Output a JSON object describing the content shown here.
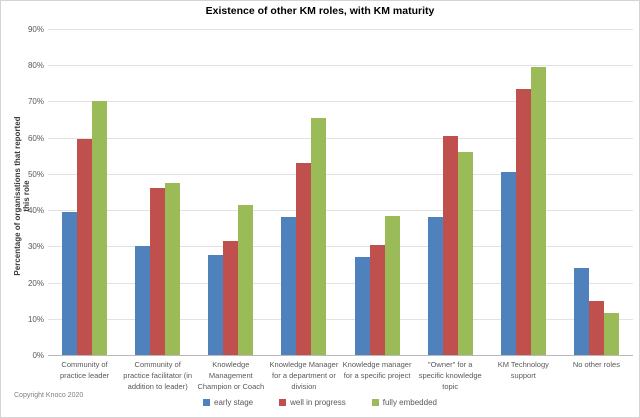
{
  "chart_data": {
    "type": "bar",
    "title": "Existence of other KM roles, with KM maturity",
    "ylabel": "Percentage of organisations that reported this role",
    "xlabel": "",
    "ylim": [
      0,
      90
    ],
    "ytick_step": 10,
    "ytick_labels": [
      "0%",
      "10%",
      "20%",
      "30%",
      "40%",
      "50%",
      "60%",
      "70%",
      "80%",
      "90%"
    ],
    "grid": true,
    "legend_position": "bottom",
    "categories": [
      "Community of practice leader",
      "Community of practice facilitator (in addition to leader)",
      "Knowledge Management Champion or Coach",
      "Knowledge Manager for a department or division",
      "Knowledge manager for a specific project",
      "\"Owner\" for a specific knowledge topic",
      "KM Technology support",
      "No other roles"
    ],
    "series": [
      {
        "name": "early stage",
        "color": "#4F81BD",
        "values": [
          39.5,
          30.0,
          27.5,
          38.0,
          27.0,
          38.0,
          50.5,
          24.0
        ]
      },
      {
        "name": "well in progress",
        "color": "#C0504D",
        "values": [
          59.5,
          46.0,
          31.5,
          53.0,
          30.5,
          60.5,
          73.5,
          15.0
        ]
      },
      {
        "name": "fully embedded",
        "color": "#9BBB59",
        "values": [
          70.0,
          47.5,
          41.5,
          65.5,
          38.5,
          56.0,
          79.5,
          11.5
        ]
      }
    ]
  },
  "footer": {
    "copyright": "Copyright Knoco 2020"
  }
}
